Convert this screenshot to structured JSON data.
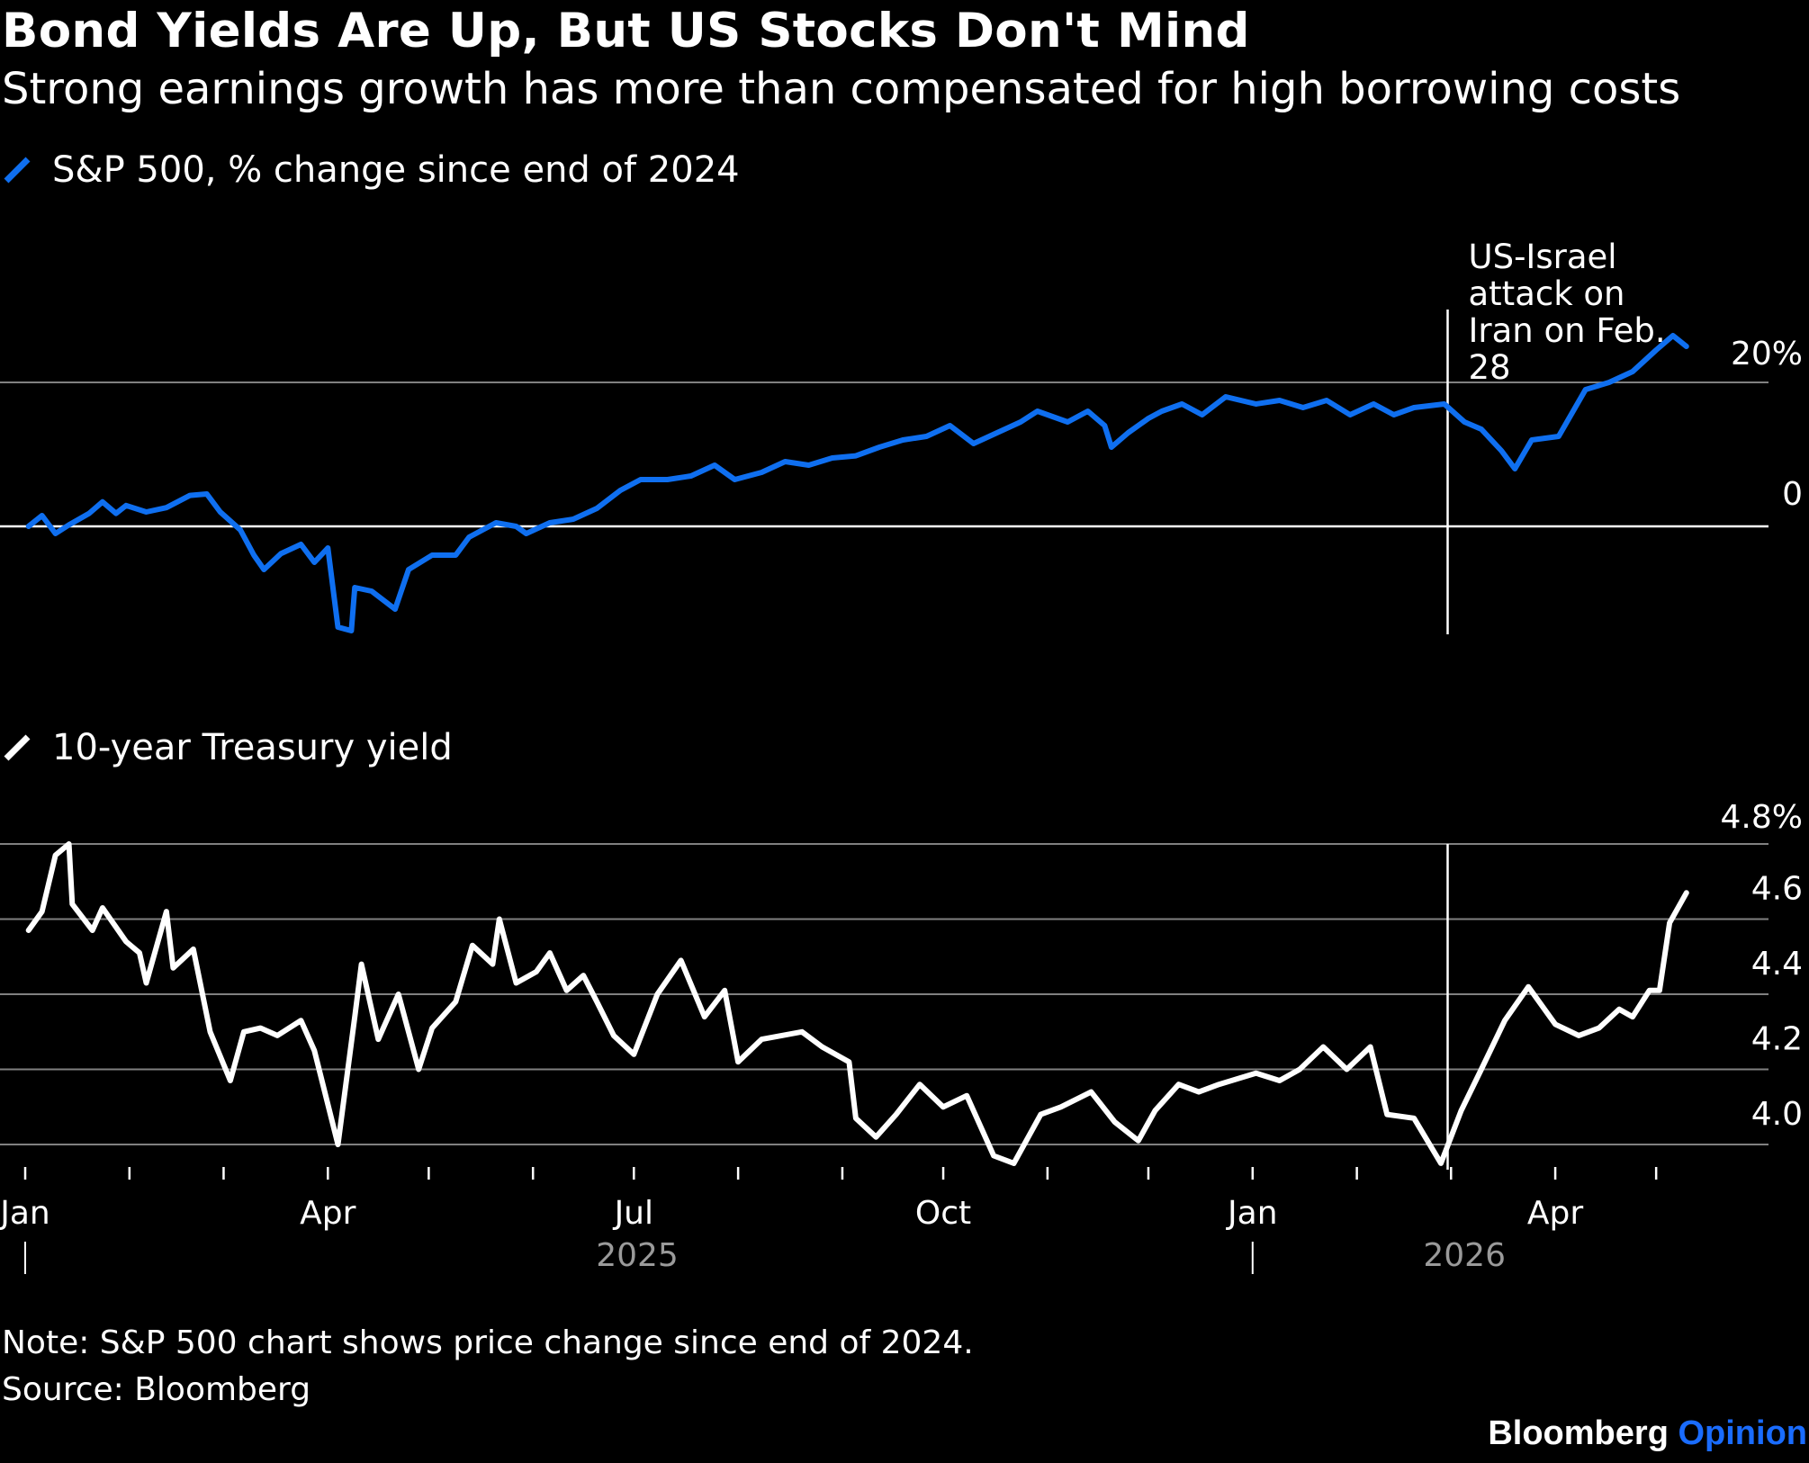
{
  "title": "Bond Yields Are Up, But US Stocks Don't Mind",
  "subtitle": "Strong earnings growth has more than compensated for high borrowing costs",
  "note": "Note: S&P 500 chart shows price change since end of 2024.",
  "source": "Source: Bloomberg",
  "brand": {
    "name": "Bloomberg",
    "suffix": "Opinion",
    "suffix_color": "#1a6cff"
  },
  "colors": {
    "sp500": "#0f6ff0",
    "treasury": "#ffffff",
    "grid": "#808080",
    "background": "#000000"
  },
  "chart_data": [
    {
      "type": "line",
      "legend": "S&P 500, % change since end of 2024",
      "series": [
        {
          "values": [
            [
              "2025-01-02",
              0.0
            ],
            [
              "2025-01-06",
              1.5
            ],
            [
              "2025-01-10",
              -1.0
            ],
            [
              "2025-01-14",
              0.2
            ],
            [
              "2025-01-20",
              1.8
            ],
            [
              "2025-01-24",
              3.4
            ],
            [
              "2025-01-28",
              1.8
            ],
            [
              "2025-01-31",
              2.9
            ],
            [
              "2025-02-06",
              2.0
            ],
            [
              "2025-02-12",
              2.6
            ],
            [
              "2025-02-19",
              4.3
            ],
            [
              "2025-02-24",
              4.5
            ],
            [
              "2025-02-28",
              2.0
            ],
            [
              "2025-03-06",
              -0.5
            ],
            [
              "2025-03-10",
              -4.0
            ],
            [
              "2025-03-13",
              -6.0
            ],
            [
              "2025-03-18",
              -3.8
            ],
            [
              "2025-03-24",
              -2.5
            ],
            [
              "2025-03-28",
              -5.0
            ],
            [
              "2025-04-01",
              -3.0
            ],
            [
              "2025-04-04",
              -14.0
            ],
            [
              "2025-04-08",
              -14.5
            ],
            [
              "2025-04-09",
              -8.5
            ],
            [
              "2025-04-14",
              -9.0
            ],
            [
              "2025-04-21",
              -11.5
            ],
            [
              "2025-04-25",
              -6.0
            ],
            [
              "2025-05-02",
              -4.0
            ],
            [
              "2025-05-09",
              -4.0
            ],
            [
              "2025-05-13",
              -1.5
            ],
            [
              "2025-05-21",
              0.5
            ],
            [
              "2025-05-27",
              0.0
            ],
            [
              "2025-05-30",
              -1.0
            ],
            [
              "2025-06-06",
              0.5
            ],
            [
              "2025-06-13",
              1.0
            ],
            [
              "2025-06-20",
              2.5
            ],
            [
              "2025-06-27",
              5.0
            ],
            [
              "2025-07-03",
              6.5
            ],
            [
              "2025-07-11",
              6.5
            ],
            [
              "2025-07-18",
              7.0
            ],
            [
              "2025-07-25",
              8.5
            ],
            [
              "2025-07-31",
              6.5
            ],
            [
              "2025-08-08",
              7.5
            ],
            [
              "2025-08-15",
              9.0
            ],
            [
              "2025-08-22",
              8.5
            ],
            [
              "2025-08-29",
              9.5
            ],
            [
              "2025-09-05",
              9.8
            ],
            [
              "2025-09-12",
              11.0
            ],
            [
              "2025-09-19",
              12.0
            ],
            [
              "2025-09-26",
              12.5
            ],
            [
              "2025-10-03",
              14.0
            ],
            [
              "2025-10-10",
              11.5
            ],
            [
              "2025-10-17",
              13.0
            ],
            [
              "2025-10-24",
              14.5
            ],
            [
              "2025-10-29",
              16.0
            ],
            [
              "2025-11-07",
              14.5
            ],
            [
              "2025-11-13",
              16.0
            ],
            [
              "2025-11-18",
              14.0
            ],
            [
              "2025-11-20",
              11.0
            ],
            [
              "2025-11-25",
              13.0
            ],
            [
              "2025-12-01",
              15.0
            ],
            [
              "2025-12-05",
              16.0
            ],
            [
              "2025-12-11",
              17.0
            ],
            [
              "2025-12-17",
              15.5
            ],
            [
              "2025-12-24",
              18.0
            ],
            [
              "2026-01-02",
              17.0
            ],
            [
              "2026-01-09",
              17.5
            ],
            [
              "2026-01-16",
              16.5
            ],
            [
              "2026-01-23",
              17.5
            ],
            [
              "2026-01-30",
              15.5
            ],
            [
              "2026-02-06",
              17.0
            ],
            [
              "2026-02-12",
              15.5
            ],
            [
              "2026-02-18",
              16.5
            ],
            [
              "2026-02-27",
              17.0
            ],
            [
              "2026-03-05",
              14.5
            ],
            [
              "2026-03-10",
              13.5
            ],
            [
              "2026-03-16",
              10.5
            ],
            [
              "2026-03-20",
              8.0
            ],
            [
              "2026-03-25",
              12.0
            ],
            [
              "2026-04-02",
              12.5
            ],
            [
              "2026-04-10",
              19.0
            ],
            [
              "2026-04-17",
              20.0
            ],
            [
              "2026-04-24",
              21.5
            ],
            [
              "2026-05-01",
              24.5
            ],
            [
              "2026-05-06",
              26.5
            ],
            [
              "2026-05-10",
              25.0
            ]
          ]
        }
      ],
      "yticks": [
        "0",
        "20%"
      ],
      "ylim": [
        -15,
        35
      ],
      "annotation": {
        "date": "2026-02-28",
        "text": [
          "US-Israel",
          "attack on",
          "Iran on Feb.",
          "28"
        ]
      }
    },
    {
      "type": "line",
      "legend": "10-year Treasury yield",
      "series": [
        {
          "values": [
            [
              "2025-01-02",
              4.57
            ],
            [
              "2025-01-06",
              4.62
            ],
            [
              "2025-01-10",
              4.77
            ],
            [
              "2025-01-14",
              4.8
            ],
            [
              "2025-01-15",
              4.64
            ],
            [
              "2025-01-21",
              4.57
            ],
            [
              "2025-01-24",
              4.63
            ],
            [
              "2025-01-31",
              4.54
            ],
            [
              "2025-02-04",
              4.51
            ],
            [
              "2025-02-06",
              4.43
            ],
            [
              "2025-02-12",
              4.62
            ],
            [
              "2025-02-14",
              4.47
            ],
            [
              "2025-02-20",
              4.52
            ],
            [
              "2025-02-25",
              4.3
            ],
            [
              "2025-03-03",
              4.17
            ],
            [
              "2025-03-07",
              4.3
            ],
            [
              "2025-03-12",
              4.31
            ],
            [
              "2025-03-17",
              4.29
            ],
            [
              "2025-03-24",
              4.33
            ],
            [
              "2025-03-28",
              4.25
            ],
            [
              "2025-04-04",
              4.0
            ],
            [
              "2025-04-09",
              4.34
            ],
            [
              "2025-04-11",
              4.48
            ],
            [
              "2025-04-16",
              4.28
            ],
            [
              "2025-04-22",
              4.4
            ],
            [
              "2025-04-28",
              4.2
            ],
            [
              "2025-05-02",
              4.31
            ],
            [
              "2025-05-09",
              4.38
            ],
            [
              "2025-05-14",
              4.53
            ],
            [
              "2025-05-20",
              4.48
            ],
            [
              "2025-05-22",
              4.6
            ],
            [
              "2025-05-27",
              4.43
            ],
            [
              "2025-06-02",
              4.46
            ],
            [
              "2025-06-06",
              4.51
            ],
            [
              "2025-06-11",
              4.41
            ],
            [
              "2025-06-16",
              4.45
            ],
            [
              "2025-06-20",
              4.38
            ],
            [
              "2025-06-25",
              4.29
            ],
            [
              "2025-07-01",
              4.24
            ],
            [
              "2025-07-08",
              4.4
            ],
            [
              "2025-07-15",
              4.49
            ],
            [
              "2025-07-22",
              4.34
            ],
            [
              "2025-07-28",
              4.41
            ],
            [
              "2025-08-01",
              4.22
            ],
            [
              "2025-08-08",
              4.28
            ],
            [
              "2025-08-14",
              4.29
            ],
            [
              "2025-08-20",
              4.3
            ],
            [
              "2025-08-26",
              4.26
            ],
            [
              "2025-09-03",
              4.22
            ],
            [
              "2025-09-05",
              4.07
            ],
            [
              "2025-09-11",
              4.02
            ],
            [
              "2025-09-17",
              4.08
            ],
            [
              "2025-09-24",
              4.16
            ],
            [
              "2025-10-01",
              4.1
            ],
            [
              "2025-10-08",
              4.13
            ],
            [
              "2025-10-16",
              3.97
            ],
            [
              "2025-10-22",
              3.95
            ],
            [
              "2025-10-30",
              4.08
            ],
            [
              "2025-11-05",
              4.1
            ],
            [
              "2025-11-14",
              4.14
            ],
            [
              "2025-11-21",
              4.06
            ],
            [
              "2025-11-28",
              4.01
            ],
            [
              "2025-12-03",
              4.09
            ],
            [
              "2025-12-10",
              4.16
            ],
            [
              "2025-12-16",
              4.14
            ],
            [
              "2025-12-22",
              4.16
            ],
            [
              "2026-01-02",
              4.19
            ],
            [
              "2026-01-09",
              4.17
            ],
            [
              "2026-01-15",
              4.2
            ],
            [
              "2026-01-22",
              4.26
            ],
            [
              "2026-01-29",
              4.2
            ],
            [
              "2026-02-05",
              4.26
            ],
            [
              "2026-02-10",
              4.08
            ],
            [
              "2026-02-18",
              4.07
            ],
            [
              "2026-02-26",
              3.95
            ],
            [
              "2026-03-04",
              4.09
            ],
            [
              "2026-03-10",
              4.2
            ],
            [
              "2026-03-17",
              4.33
            ],
            [
              "2026-03-24",
              4.42
            ],
            [
              "2026-04-01",
              4.32
            ],
            [
              "2026-04-08",
              4.29
            ],
            [
              "2026-04-14",
              4.31
            ],
            [
              "2026-04-20",
              4.36
            ],
            [
              "2026-04-24",
              4.34
            ],
            [
              "2026-04-29",
              4.41
            ],
            [
              "2026-05-02",
              4.41
            ],
            [
              "2026-05-05",
              4.59
            ],
            [
              "2026-05-10",
              4.67
            ]
          ]
        }
      ],
      "yticks": [
        "4.0",
        "4.2",
        "4.4",
        "4.6",
        "4.8%"
      ],
      "ylim": [
        3.92,
        4.82
      ],
      "annotation": {
        "date": "2026-02-28"
      }
    }
  ],
  "x_axis": {
    "months": [
      "Jan",
      "Apr",
      "Jul",
      "Oct",
      "Jan",
      "Apr"
    ],
    "years": [
      "2025",
      "2026"
    ]
  }
}
